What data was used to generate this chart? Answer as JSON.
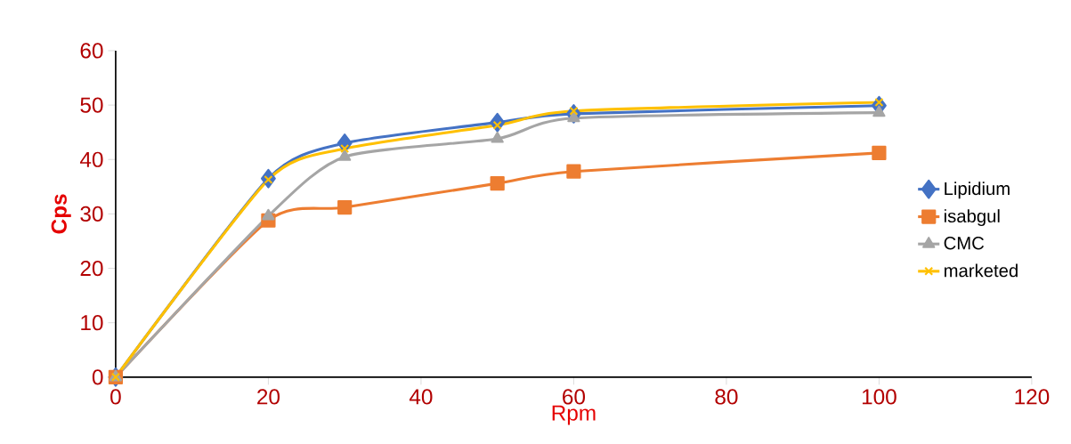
{
  "chart_data": {
    "type": "line",
    "xlabel": "Rpm",
    "ylabel": "Cps",
    "x": [
      0,
      20,
      30,
      50,
      60,
      100
    ],
    "series": [
      {
        "name": "Lipidium",
        "color": "#4472c4",
        "marker": "diamond",
        "values": [
          0,
          36.5,
          43.0,
          46.8,
          48.4,
          49.9
        ]
      },
      {
        "name": "isabgul",
        "color": "#ed7d31",
        "marker": "square",
        "values": [
          0,
          28.8,
          31.2,
          35.6,
          37.8,
          41.2
        ]
      },
      {
        "name": "CMC",
        "color": "#a5a5a5",
        "marker": "triangle",
        "values": [
          0,
          29.6,
          40.5,
          43.8,
          47.6,
          48.6
        ]
      },
      {
        "name": "marketed",
        "color": "#ffc000",
        "marker": "cross",
        "values": [
          0,
          36.3,
          42.0,
          46.3,
          48.9,
          50.5
        ]
      }
    ],
    "xlim": [
      0,
      120
    ],
    "xticks": [
      0,
      20,
      40,
      60,
      80,
      100,
      120
    ],
    "ylim": [
      0,
      60
    ],
    "yticks": [
      0,
      10,
      20,
      30,
      40,
      50,
      60
    ],
    "legend": "right",
    "grid": false
  }
}
